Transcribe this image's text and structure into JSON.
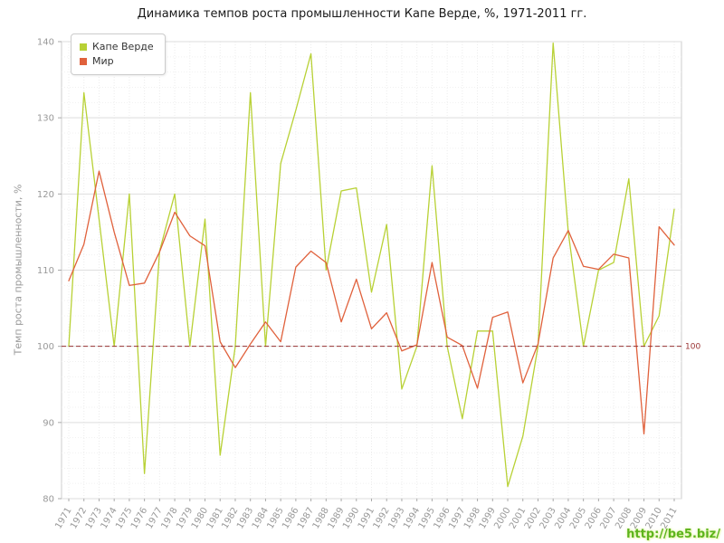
{
  "watermark": {
    "text": "http://be5.biz/",
    "color": "#5db41c"
  },
  "chart_data": {
    "type": "line",
    "title": "Динамика темпов роста промышленности Капе Верде, %, 1971-2011 гг.",
    "xlabel": "",
    "ylabel": "Темп роста промышленности, %",
    "ylim": [
      80,
      140
    ],
    "y_ticks": [
      80,
      90,
      100,
      110,
      120,
      130,
      140
    ],
    "grid": true,
    "legend_position": "top-left",
    "reference_line": {
      "value": 100,
      "label": "100",
      "color": "#993333"
    },
    "categories": [
      "1971",
      "1972",
      "1973",
      "1974",
      "1975",
      "1976",
      "1977",
      "1978",
      "1979",
      "1980",
      "1981",
      "1982",
      "1983",
      "1984",
      "1985",
      "1986",
      "1987",
      "1988",
      "1989",
      "1990",
      "1991",
      "1992",
      "1993",
      "1994",
      "1995",
      "1996",
      "1997",
      "1998",
      "1999",
      "2000",
      "2001",
      "2002",
      "2003",
      "2004",
      "2005",
      "2006",
      "2007",
      "2008",
      "2009",
      "2010",
      "2011"
    ],
    "series": [
      {
        "key": "cape-verde",
        "name": "Капе Верде",
        "color": "#b8d135",
        "values": [
          100,
          133.3,
          116.7,
          100,
          120,
          83.3,
          112.5,
          120,
          100,
          116.7,
          85.7,
          100,
          133.3,
          100,
          124,
          131,
          138.4,
          110,
          120.4,
          120.8,
          107.1,
          116,
          94.4,
          100,
          123.7,
          100,
          90.5,
          102,
          102,
          81.6,
          88.2,
          100,
          139.8,
          115,
          100,
          110,
          111,
          122,
          100,
          104,
          118
        ]
      },
      {
        "key": "world",
        "name": "Мир",
        "color": "#e0613c",
        "values": [
          108.6,
          113.4,
          123,
          115,
          108,
          108.3,
          112.4,
          117.6,
          114.5,
          113.2,
          100.6,
          97.2,
          100.3,
          103.2,
          100.6,
          110.4,
          112.5,
          111,
          103.2,
          108.8,
          102.3,
          104.4,
          99.4,
          100.2,
          111,
          101.2,
          100.1,
          94.5,
          103.8,
          104.5,
          95.2,
          100.3,
          111.6,
          115.2,
          110.5,
          110.1,
          112.1,
          111.6,
          88.5,
          115.7,
          113.3
        ]
      }
    ]
  }
}
